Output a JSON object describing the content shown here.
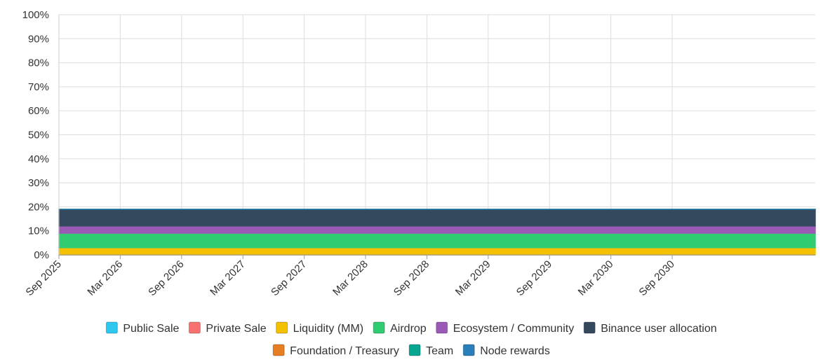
{
  "chart_data": {
    "type": "area",
    "stacked": true,
    "title": "",
    "xlabel": "",
    "ylabel": "",
    "ylim": [
      0,
      100
    ],
    "grid": true,
    "legend_position": "bottom",
    "x_tick_labels": [
      "Sep 2025",
      "Mar 2026",
      "Sep 2026",
      "Mar 2027",
      "Sep 2027",
      "Mar 2028",
      "Sep 2028",
      "Mar 2029",
      "Sep 2029",
      "Mar 2030",
      "Sep 2030"
    ],
    "y_tick_labels": [
      "0%",
      "10%",
      "20%",
      "30%",
      "40%",
      "50%",
      "60%",
      "70%",
      "80%",
      "90%",
      "100%"
    ],
    "x": [
      0,
      3,
      6,
      12,
      18,
      24,
      30,
      36,
      42,
      48,
      54,
      60,
      61,
      62,
      63,
      64,
      65,
      66,
      67,
      68,
      69,
      70,
      72,
      74
    ],
    "x_unit": "months since Sep 2025",
    "series": [
      {
        "name": "Public Sale",
        "color": "#2ec7f0",
        "values": [
          0,
          0,
          0,
          0,
          0,
          0,
          0,
          0,
          0,
          0,
          0,
          0,
          0,
          0,
          0,
          0,
          0,
          0,
          0,
          0,
          0,
          0,
          0,
          0
        ]
      },
      {
        "name": "Private Sale",
        "color": "#f87171",
        "values": [
          0,
          0,
          0,
          0,
          0,
          0,
          0,
          0,
          0,
          0,
          0,
          0,
          0,
          0,
          0,
          0,
          0,
          0,
          0,
          0,
          0,
          0,
          0,
          0
        ]
      },
      {
        "name": "Liquidity (MM)",
        "color": "#f3c100",
        "values": [
          3,
          3,
          3,
          3,
          3,
          3,
          3,
          3,
          3,
          3,
          3,
          3,
          3,
          3,
          3,
          3,
          3,
          3,
          3,
          3,
          3,
          3,
          3,
          3
        ]
      },
      {
        "name": "Airdrop",
        "color": "#2fcc71",
        "values": [
          6,
          6,
          6,
          6,
          6,
          6,
          6,
          6,
          6,
          6,
          6,
          6,
          6,
          6,
          6,
          6,
          6,
          6,
          6,
          6,
          6,
          6,
          6,
          6
        ]
      },
      {
        "name": "Ecosystem / Community",
        "color": "#9b59b6",
        "values": [
          3,
          3,
          3,
          3,
          3,
          3,
          3,
          3,
          3,
          3,
          3,
          3,
          3,
          3,
          3,
          3,
          3,
          3,
          3,
          3,
          3,
          3,
          3,
          3
        ]
      },
      {
        "name": "Binance user allocation",
        "color": "#34495e",
        "values": [
          7,
          7,
          7,
          7,
          7,
          7,
          7,
          7,
          7,
          7,
          7,
          7,
          7,
          7,
          7,
          7,
          7,
          7,
          7,
          7,
          7,
          7,
          7,
          7
        ]
      },
      {
        "name": "Foundation / Treasury",
        "color": "#e67e22",
        "values": [
          0,
          0,
          0,
          0,
          0,
          0,
          0,
          0,
          0,
          0,
          0,
          0,
          0,
          0,
          0,
          0,
          0,
          0,
          0,
          0,
          0,
          0,
          0,
          0
        ]
      },
      {
        "name": "Team",
        "color": "#07a690",
        "values": [
          0,
          0,
          0,
          0,
          0,
          0,
          0,
          0,
          0,
          0,
          0,
          0,
          0,
          0,
          0,
          0,
          0,
          0,
          0,
          0,
          0,
          0,
          0,
          0
        ]
      },
      {
        "name": "Node rewards",
        "color": "#2a7fba",
        "values": [
          0,
          0,
          0,
          0,
          0,
          0,
          0,
          0,
          0,
          0,
          0,
          0,
          0,
          0,
          0,
          0,
          0,
          0,
          0,
          0,
          0,
          0,
          0,
          0
        ]
      }
    ]
  },
  "legend": [
    {
      "label": "Public Sale",
      "color": "#2ec7f0"
    },
    {
      "label": "Private Sale",
      "color": "#f87171"
    },
    {
      "label": "Liquidity (MM)",
      "color": "#f3c100"
    },
    {
      "label": "Airdrop",
      "color": "#2fcc71"
    },
    {
      "label": "Ecosystem / Community",
      "color": "#9b59b6"
    },
    {
      "label": "Binance user allocation",
      "color": "#34495e"
    },
    {
      "label": "Foundation / Treasury",
      "color": "#e67e22"
    },
    {
      "label": "Team",
      "color": "#07a690"
    },
    {
      "label": "Node rewards",
      "color": "#2a7fba"
    }
  ]
}
